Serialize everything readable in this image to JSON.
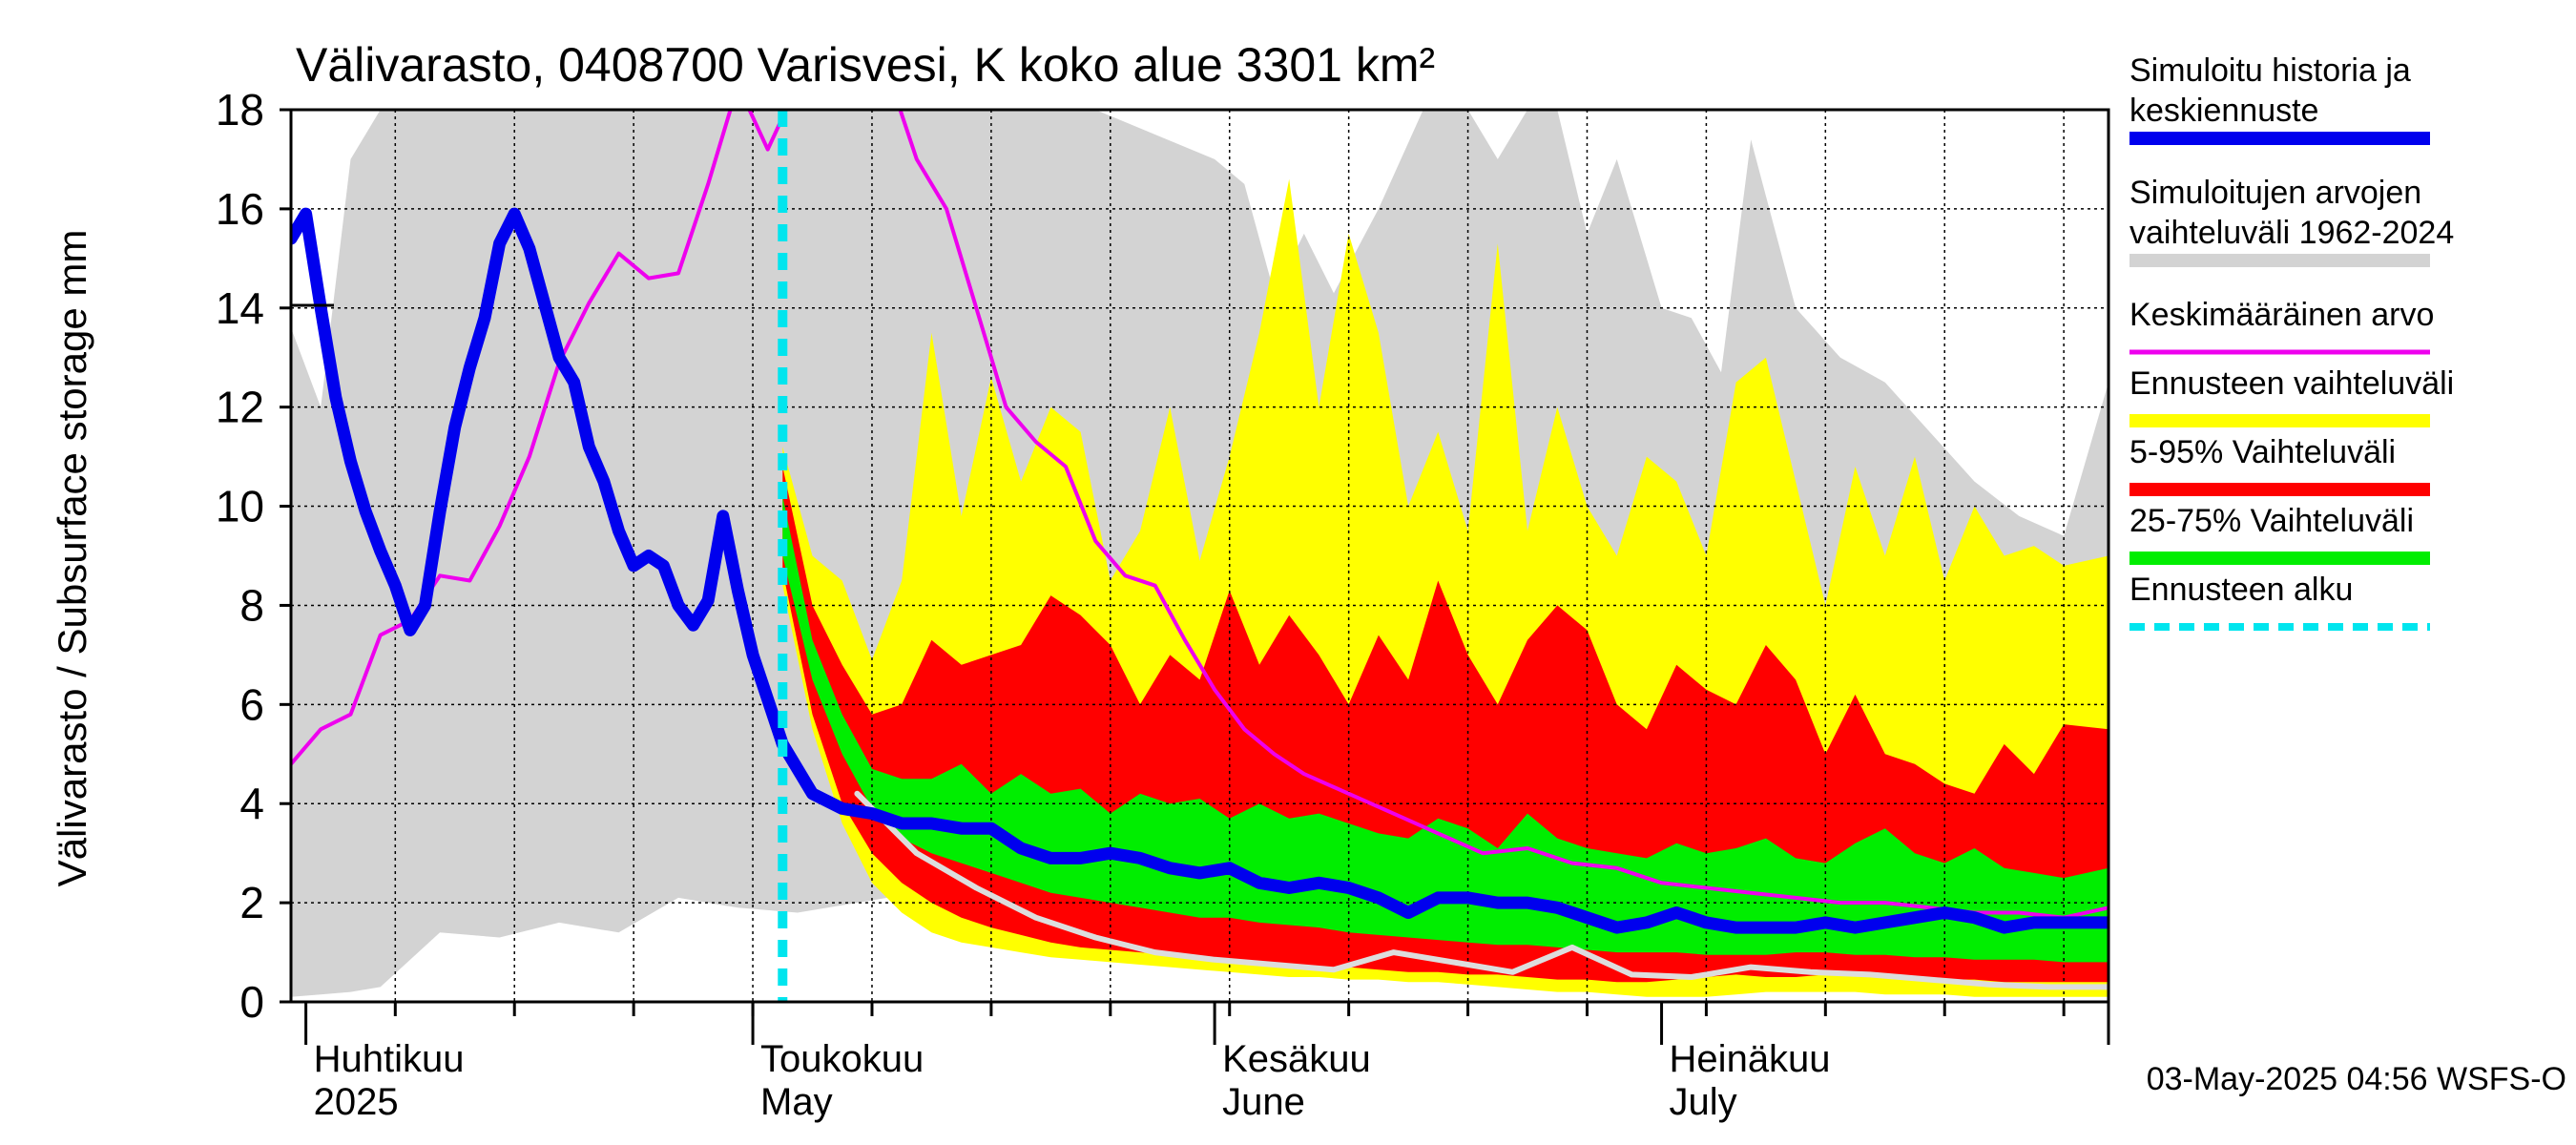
{
  "chart_data": {
    "type": "area",
    "title": "Välivarasto, 0408700 Varisvesi, K koko alue 3301 km²",
    "ylabel": "Välivarasto / Subsurface storage  mm",
    "xlabel": "",
    "ylim": [
      0,
      18
    ],
    "yticks": [
      0,
      2,
      4,
      6,
      8,
      10,
      12,
      14,
      16,
      18
    ],
    "xlim": [
      "2025-03-31",
      "2025-07-31"
    ],
    "grid": true,
    "legend_position": "right",
    "month_labels": [
      {
        "fi": "Huhtikuu",
        "en": "2025",
        "date": "2025-04-01"
      },
      {
        "fi": "Toukokuu",
        "en": "May",
        "date": "2025-05-01"
      },
      {
        "fi": "Kesäkuu",
        "en": "June",
        "date": "2025-06-01"
      },
      {
        "fi": "Heinäkuu",
        "en": "July",
        "date": "2025-07-01"
      }
    ],
    "forecast_start": "2025-05-03",
    "footer": "03-May-2025 04:56 WSFS-O",
    "colors": {
      "history_band": "#d3d3d3",
      "forecast_range": "#ffff00",
      "p5_95": "#ff0000",
      "p25_75": "#00ee00",
      "median": "#0000ee",
      "mean": "#ee00ee",
      "forecast_start": "#00e5ee",
      "low_line": "#dddddd"
    },
    "legend": [
      {
        "label": "Simuloitu historia ja",
        "label2": "keskiennuste",
        "color": "#0000ee",
        "style": "thick"
      },
      {
        "label": "Simuloitujen arvojen",
        "label2": "vaihteluväli 1962-2024",
        "color": "#d3d3d3",
        "style": "thick"
      },
      {
        "label": "Keskimääräinen arvo",
        "label2": "",
        "color": "#ee00ee",
        "style": "thin"
      },
      {
        "label": "Ennusteen vaihteluväli",
        "label2": "",
        "color": "#ffff00",
        "style": "thick"
      },
      {
        "label": "5-95% Vaihteluväli",
        "label2": "",
        "color": "#ff0000",
        "style": "thick"
      },
      {
        "label": "25-75% Vaihteluväli",
        "label2": "",
        "color": "#00ee00",
        "style": "thick"
      },
      {
        "label": "Ennusteen alku",
        "label2": "",
        "color": "#00e5ee",
        "style": "dashed"
      }
    ],
    "series": [
      {
        "name": "Simuloitujen arvojen vaihteluväli 1962-2024",
        "kind": "band",
        "x": [
          "2025-03-31",
          "2025-04-02",
          "2025-04-04",
          "2025-04-06",
          "2025-04-10",
          "2025-04-14",
          "2025-04-18",
          "2025-04-22",
          "2025-04-26",
          "2025-04-30",
          "2025-05-04",
          "2025-05-08",
          "2025-05-12",
          "2025-05-14",
          "2025-05-16",
          "2025-05-18",
          "2025-05-20",
          "2025-05-24",
          "2025-05-28",
          "2025-06-01",
          "2025-06-03",
          "2025-06-05",
          "2025-06-07",
          "2025-06-09",
          "2025-06-12",
          "2025-06-15",
          "2025-06-18",
          "2025-06-20",
          "2025-06-22",
          "2025-06-24",
          "2025-06-26",
          "2025-06-28",
          "2025-07-01",
          "2025-07-03",
          "2025-07-05",
          "2025-07-07",
          "2025-07-10",
          "2025-07-13",
          "2025-07-16",
          "2025-07-19",
          "2025-07-22",
          "2025-07-25",
          "2025-07-28",
          "2025-07-31"
        ],
        "low": [
          0.1,
          0.15,
          0.2,
          0.3,
          1.4,
          1.3,
          1.6,
          1.4,
          2.1,
          1.9,
          1.8,
          2.0,
          2.2,
          3.6,
          4.3,
          3.5,
          2.9,
          2.5,
          2.2,
          2.2,
          2.1,
          2.0,
          1.9,
          1.9,
          1.6,
          1.4,
          1.3,
          1.2,
          1.4,
          1.3,
          1.2,
          1.2,
          1.1,
          1.1,
          1.0,
          1.0,
          0.9,
          0.9,
          0.8,
          0.8,
          0.7,
          0.7,
          0.6,
          0.6
        ],
        "high": [
          13.6,
          12.0,
          17.0,
          18,
          18,
          18,
          18,
          18,
          18,
          18,
          18,
          18,
          18,
          18,
          18,
          18,
          18,
          18,
          17.5,
          17.0,
          16.5,
          14.3,
          15.5,
          14.3,
          16.0,
          18,
          18,
          17.0,
          18,
          18,
          15.5,
          17.0,
          14.0,
          13.8,
          12.7,
          17.4,
          14.0,
          13.0,
          12.5,
          11.5,
          10.5,
          9.8,
          9.4,
          12.5
        ]
      },
      {
        "name": "Ennusteen vaihteluväli",
        "kind": "band",
        "x": [
          "2025-05-03",
          "2025-05-05",
          "2025-05-07",
          "2025-05-09",
          "2025-05-11",
          "2025-05-13",
          "2025-05-15",
          "2025-05-17",
          "2025-05-19",
          "2025-05-21",
          "2025-05-23",
          "2025-05-25",
          "2025-05-27",
          "2025-05-29",
          "2025-05-31",
          "2025-06-02",
          "2025-06-04",
          "2025-06-06",
          "2025-06-08",
          "2025-06-10",
          "2025-06-12",
          "2025-06-14",
          "2025-06-16",
          "2025-06-18",
          "2025-06-20",
          "2025-06-22",
          "2025-06-24",
          "2025-06-26",
          "2025-06-28",
          "2025-06-30",
          "2025-07-02",
          "2025-07-04",
          "2025-07-06",
          "2025-07-08",
          "2025-07-10",
          "2025-07-12",
          "2025-07-14",
          "2025-07-16",
          "2025-07-18",
          "2025-07-20",
          "2025-07-22",
          "2025-07-24",
          "2025-07-26",
          "2025-07-28",
          "2025-07-31"
        ],
        "low": [
          8.4,
          5.5,
          3.6,
          2.4,
          1.8,
          1.4,
          1.2,
          1.1,
          1.0,
          0.9,
          0.85,
          0.8,
          0.75,
          0.7,
          0.65,
          0.6,
          0.55,
          0.5,
          0.5,
          0.45,
          0.45,
          0.4,
          0.4,
          0.35,
          0.3,
          0.25,
          0.2,
          0.2,
          0.15,
          0.1,
          0.1,
          0.1,
          0.15,
          0.2,
          0.2,
          0.2,
          0.2,
          0.15,
          0.15,
          0.15,
          0.1,
          0.1,
          0.1,
          0.1,
          0.1
        ],
        "high": [
          11.2,
          9.0,
          8.5,
          6.9,
          8.5,
          13.5,
          9.8,
          12.6,
          10.5,
          12.0,
          11.5,
          8.5,
          9.5,
          12.0,
          8.9,
          11.0,
          13.5,
          16.6,
          12.0,
          15.5,
          13.5,
          10.0,
          11.5,
          9.5,
          15.3,
          9.5,
          12.0,
          10.0,
          9.0,
          11.0,
          10.5,
          9.0,
          12.5,
          13.0,
          10.5,
          8.0,
          10.8,
          9.0,
          11.0,
          8.5,
          10.0,
          9.0,
          9.2,
          8.8,
          9.0
        ]
      },
      {
        "name": "5-95% Vaihteluväli",
        "kind": "band",
        "x": [
          "2025-05-03",
          "2025-05-05",
          "2025-05-07",
          "2025-05-09",
          "2025-05-11",
          "2025-05-13",
          "2025-05-15",
          "2025-05-17",
          "2025-05-19",
          "2025-05-21",
          "2025-05-23",
          "2025-05-25",
          "2025-05-27",
          "2025-05-29",
          "2025-05-31",
          "2025-06-02",
          "2025-06-04",
          "2025-06-06",
          "2025-06-08",
          "2025-06-10",
          "2025-06-12",
          "2025-06-14",
          "2025-06-16",
          "2025-06-18",
          "2025-06-20",
          "2025-06-22",
          "2025-06-24",
          "2025-06-26",
          "2025-06-28",
          "2025-06-30",
          "2025-07-02",
          "2025-07-04",
          "2025-07-06",
          "2025-07-08",
          "2025-07-10",
          "2025-07-12",
          "2025-07-14",
          "2025-07-16",
          "2025-07-18",
          "2025-07-20",
          "2025-07-22",
          "2025-07-24",
          "2025-07-26",
          "2025-07-28",
          "2025-07-31"
        ],
        "low": [
          8.7,
          5.8,
          4.0,
          3.0,
          2.4,
          2.0,
          1.7,
          1.5,
          1.35,
          1.2,
          1.1,
          1.05,
          1.0,
          0.95,
          0.9,
          0.85,
          0.8,
          0.75,
          0.7,
          0.7,
          0.65,
          0.6,
          0.6,
          0.55,
          0.55,
          0.5,
          0.45,
          0.45,
          0.4,
          0.4,
          0.45,
          0.5,
          0.55,
          0.5,
          0.5,
          0.55,
          0.55,
          0.5,
          0.5,
          0.45,
          0.45,
          0.4,
          0.4,
          0.4,
          0.4
        ],
        "high": [
          10.8,
          8.0,
          6.8,
          5.8,
          6.0,
          7.3,
          6.8,
          7.0,
          7.2,
          8.2,
          7.8,
          7.2,
          6.0,
          7.0,
          6.5,
          8.3,
          6.8,
          7.8,
          7.0,
          6.0,
          7.4,
          6.5,
          8.5,
          7.0,
          6.0,
          7.3,
          8.0,
          7.5,
          6.0,
          5.5,
          6.8,
          6.3,
          6.0,
          7.2,
          6.5,
          5.0,
          6.2,
          5.0,
          4.8,
          4.4,
          4.2,
          5.2,
          4.6,
          5.6,
          5.5
        ]
      },
      {
        "name": "25-75% Vaihteluväli",
        "kind": "band",
        "x": [
          "2025-05-03",
          "2025-05-05",
          "2025-05-07",
          "2025-05-09",
          "2025-05-11",
          "2025-05-13",
          "2025-05-15",
          "2025-05-17",
          "2025-05-19",
          "2025-05-21",
          "2025-05-23",
          "2025-05-25",
          "2025-05-27",
          "2025-05-29",
          "2025-05-31",
          "2025-06-02",
          "2025-06-04",
          "2025-06-06",
          "2025-06-08",
          "2025-06-10",
          "2025-06-12",
          "2025-06-14",
          "2025-06-16",
          "2025-06-18",
          "2025-06-20",
          "2025-06-22",
          "2025-06-24",
          "2025-06-26",
          "2025-06-28",
          "2025-06-30",
          "2025-07-02",
          "2025-07-04",
          "2025-07-06",
          "2025-07-08",
          "2025-07-10",
          "2025-07-12",
          "2025-07-14",
          "2025-07-16",
          "2025-07-18",
          "2025-07-20",
          "2025-07-22",
          "2025-07-24",
          "2025-07-26",
          "2025-07-28",
          "2025-07-31"
        ],
        "low": [
          9.0,
          6.5,
          5.0,
          3.9,
          3.3,
          3.0,
          2.8,
          2.6,
          2.4,
          2.2,
          2.1,
          2.0,
          1.9,
          1.8,
          1.7,
          1.7,
          1.6,
          1.55,
          1.5,
          1.4,
          1.35,
          1.3,
          1.25,
          1.2,
          1.15,
          1.15,
          1.1,
          1.05,
          1.0,
          1.0,
          1.0,
          0.95,
          0.95,
          0.95,
          1.0,
          1.0,
          0.95,
          0.95,
          0.9,
          0.9,
          0.85,
          0.85,
          0.85,
          0.8,
          0.8
        ],
        "high": [
          10.2,
          7.3,
          5.8,
          4.7,
          4.5,
          4.5,
          4.8,
          4.2,
          4.6,
          4.2,
          4.3,
          3.8,
          4.2,
          4.0,
          4.1,
          3.7,
          4.0,
          3.7,
          3.8,
          3.6,
          3.4,
          3.3,
          3.7,
          3.5,
          3.1,
          3.8,
          3.3,
          3.1,
          3.0,
          2.9,
          3.2,
          3.0,
          3.1,
          3.3,
          2.9,
          2.8,
          3.2,
          3.5,
          3.0,
          2.8,
          3.1,
          2.7,
          2.6,
          2.5,
          2.7
        ]
      },
      {
        "name": "Keskiennuste (alaraja)",
        "kind": "line",
        "color": "#dddddd",
        "x": [
          "2025-05-08",
          "2025-05-12",
          "2025-05-16",
          "2025-05-20",
          "2025-05-24",
          "2025-05-28",
          "2025-06-01",
          "2025-06-05",
          "2025-06-09",
          "2025-06-13",
          "2025-06-17",
          "2025-06-21",
          "2025-06-25",
          "2025-06-29",
          "2025-07-03",
          "2025-07-07",
          "2025-07-11",
          "2025-07-15",
          "2025-07-19",
          "2025-07-23",
          "2025-07-27",
          "2025-07-31"
        ],
        "y": [
          4.2,
          3.0,
          2.3,
          1.7,
          1.3,
          1.0,
          0.85,
          0.75,
          0.65,
          1.0,
          0.8,
          0.6,
          1.1,
          0.55,
          0.5,
          0.7,
          0.6,
          0.55,
          0.45,
          0.35,
          0.3,
          0.3
        ]
      },
      {
        "name": "Keskimääräinen arvo",
        "kind": "line",
        "color": "#ee00ee",
        "x": [
          "2025-03-31",
          "2025-04-02",
          "2025-04-04",
          "2025-04-06",
          "2025-04-08",
          "2025-04-10",
          "2025-04-12",
          "2025-04-14",
          "2025-04-16",
          "2025-04-18",
          "2025-04-20",
          "2025-04-22",
          "2025-04-24",
          "2025-04-26",
          "2025-04-28",
          "2025-04-30",
          "2025-05-02",
          "2025-05-04",
          "2025-05-06",
          "2025-05-08",
          "2025-05-10",
          "2025-05-12",
          "2025-05-14",
          "2025-05-16",
          "2025-05-18",
          "2025-05-20",
          "2025-05-22",
          "2025-05-24",
          "2025-05-26",
          "2025-05-28",
          "2025-05-30",
          "2025-06-01",
          "2025-06-03",
          "2025-06-05",
          "2025-06-07",
          "2025-06-10",
          "2025-06-13",
          "2025-06-16",
          "2025-06-19",
          "2025-06-22",
          "2025-06-25",
          "2025-06-28",
          "2025-07-01",
          "2025-07-04",
          "2025-07-07",
          "2025-07-10",
          "2025-07-13",
          "2025-07-16",
          "2025-07-19",
          "2025-07-22",
          "2025-07-25",
          "2025-07-28",
          "2025-07-31"
        ],
        "y": [
          4.8,
          5.5,
          5.8,
          7.4,
          7.7,
          8.6,
          8.5,
          9.6,
          11.0,
          12.9,
          14.1,
          15.1,
          14.6,
          14.7,
          16.5,
          18.5,
          17.2,
          18.5,
          19.0,
          19.5,
          18.8,
          17.0,
          16.0,
          14.0,
          12.0,
          11.3,
          10.8,
          9.3,
          8.6,
          8.4,
          7.3,
          6.3,
          5.5,
          5.0,
          4.6,
          4.2,
          3.8,
          3.4,
          3.0,
          3.1,
          2.8,
          2.7,
          2.4,
          2.3,
          2.2,
          2.1,
          2.0,
          2.0,
          1.9,
          1.8,
          1.8,
          1.7,
          1.9
        ]
      },
      {
        "name": "Simuloitu historia ja keskiennuste",
        "kind": "line",
        "color": "#0000ee",
        "x": [
          "2025-03-31",
          "2025-04-01",
          "2025-04-02",
          "2025-04-03",
          "2025-04-04",
          "2025-04-05",
          "2025-04-06",
          "2025-04-07",
          "2025-04-08",
          "2025-04-09",
          "2025-04-10",
          "2025-04-11",
          "2025-04-12",
          "2025-04-13",
          "2025-04-14",
          "2025-04-15",
          "2025-04-16",
          "2025-04-17",
          "2025-04-18",
          "2025-04-19",
          "2025-04-20",
          "2025-04-21",
          "2025-04-22",
          "2025-04-23",
          "2025-04-24",
          "2025-04-25",
          "2025-04-26",
          "2025-04-27",
          "2025-04-28",
          "2025-04-29",
          "2025-04-30",
          "2025-05-01",
          "2025-05-02",
          "2025-05-03",
          "2025-05-05",
          "2025-05-07",
          "2025-05-09",
          "2025-05-11",
          "2025-05-13",
          "2025-05-15",
          "2025-05-17",
          "2025-05-19",
          "2025-05-21",
          "2025-05-23",
          "2025-05-25",
          "2025-05-27",
          "2025-05-29",
          "2025-05-31",
          "2025-06-02",
          "2025-06-04",
          "2025-06-06",
          "2025-06-08",
          "2025-06-10",
          "2025-06-12",
          "2025-06-14",
          "2025-06-16",
          "2025-06-18",
          "2025-06-20",
          "2025-06-22",
          "2025-06-24",
          "2025-06-26",
          "2025-06-28",
          "2025-06-30",
          "2025-07-02",
          "2025-07-04",
          "2025-07-06",
          "2025-07-08",
          "2025-07-10",
          "2025-07-12",
          "2025-07-14",
          "2025-07-16",
          "2025-07-18",
          "2025-07-20",
          "2025-07-22",
          "2025-07-24",
          "2025-07-26",
          "2025-07-28",
          "2025-07-31"
        ],
        "y": [
          15.4,
          15.9,
          14.0,
          12.2,
          10.9,
          9.9,
          9.1,
          8.4,
          7.5,
          8.0,
          9.9,
          11.6,
          12.8,
          13.8,
          15.3,
          15.9,
          15.2,
          14.1,
          13.0,
          12.5,
          11.2,
          10.5,
          9.5,
          8.8,
          9.0,
          8.8,
          8.0,
          7.6,
          8.1,
          9.8,
          8.3,
          7.0,
          6.1,
          5.2,
          4.2,
          3.9,
          3.8,
          3.6,
          3.6,
          3.5,
          3.5,
          3.1,
          2.9,
          2.9,
          3.0,
          2.9,
          2.7,
          2.6,
          2.7,
          2.4,
          2.3,
          2.4,
          2.3,
          2.1,
          1.8,
          2.1,
          2.1,
          2.0,
          2.0,
          1.9,
          1.7,
          1.5,
          1.6,
          1.8,
          1.6,
          1.5,
          1.5,
          1.5,
          1.6,
          1.5,
          1.6,
          1.7,
          1.8,
          1.7,
          1.5,
          1.6,
          1.6,
          1.6
        ]
      }
    ]
  }
}
